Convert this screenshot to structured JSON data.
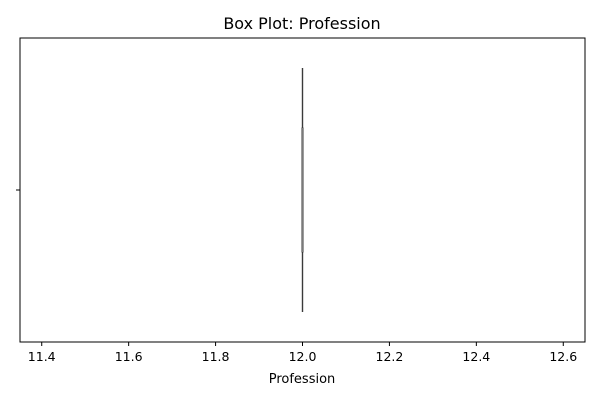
{
  "chart_data": {
    "type": "box",
    "title": "Box Plot: Profession",
    "xlabel": "Profession",
    "ylabel": "",
    "orientation": "horizontal",
    "xlim": [
      11.35,
      12.65
    ],
    "xticks": [
      "11.4",
      "11.6",
      "11.8",
      "12.0",
      "12.2",
      "12.4",
      "12.6"
    ],
    "series": [
      {
        "min": 12.0,
        "q1": 12.0,
        "median": 12.0,
        "q3": 12.0,
        "max": 12.0,
        "color": "#3a3a3a"
      }
    ],
    "grid": false,
    "legend": "none"
  }
}
